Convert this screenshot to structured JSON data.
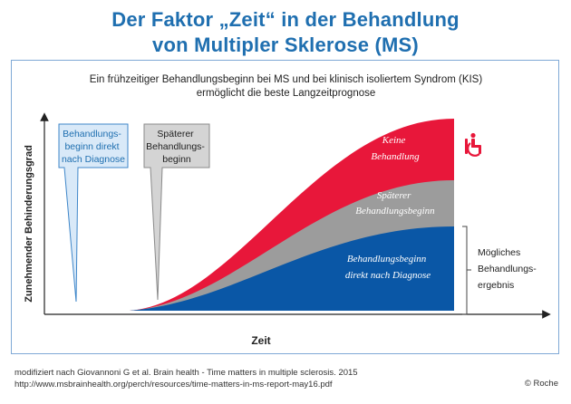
{
  "title_line1": "Der Faktor „Zeit“ in der Behandlung",
  "title_line2": "von Multipler Sklerose (MS)",
  "subtitle_line1": "Ein frühzeitiger Behandlungsbeginn bei MS und bei klinisch isoliertem Syndrom (KIS)",
  "subtitle_line2": "ermöglicht die beste Langzeitprognose",
  "colors": {
    "title": "#1f6fb0",
    "keine": "#e8173a",
    "spaeter": "#9c9c9c",
    "direkt": "#0a57a6",
    "callout_blue_fill": "#d9e9f8",
    "callout_blue_border": "#3e86c9",
    "callout_grey_fill": "#d4d4d4",
    "callout_grey_border": "#8a8a8a",
    "wheelchair": "#e8173a"
  },
  "chart_data": {
    "type": "area",
    "xlabel": "Zeit",
    "ylabel": "Zunehmender Behinderungsgrad",
    "series": [
      {
        "name": "Keine Behandlung",
        "label": [
          "Keine",
          "Behandlung"
        ]
      },
      {
        "name": "Späterer Behandlungsbeginn",
        "label": [
          "Späterer",
          "Behandlungsbeginn"
        ]
      },
      {
        "name": "Behandlungsbeginn direkt nach Diagnose",
        "label": [
          "Behandlungsbeginn",
          "direkt nach Diagnose"
        ]
      }
    ],
    "callouts": [
      {
        "lines": [
          "Behandlungs-",
          "beginn direkt",
          "nach Diagnose"
        ]
      },
      {
        "lines": [
          "Späterer",
          "Behandlungs-",
          "beginn"
        ]
      }
    ],
    "bracket_label": [
      "Mögliches",
      "Behandlungs-",
      "ergebnis"
    ]
  },
  "icon": "wheelchair-icon",
  "footer_line1": "modifiziert nach Giovannoni G et al. Brain health - Time matters in multiple sclerosis. 2015",
  "footer_line2": "http://www.msbrainhealth.org/perch/resources/time-matters-in-ms-report-may16.pdf",
  "copyright": "© Roche"
}
